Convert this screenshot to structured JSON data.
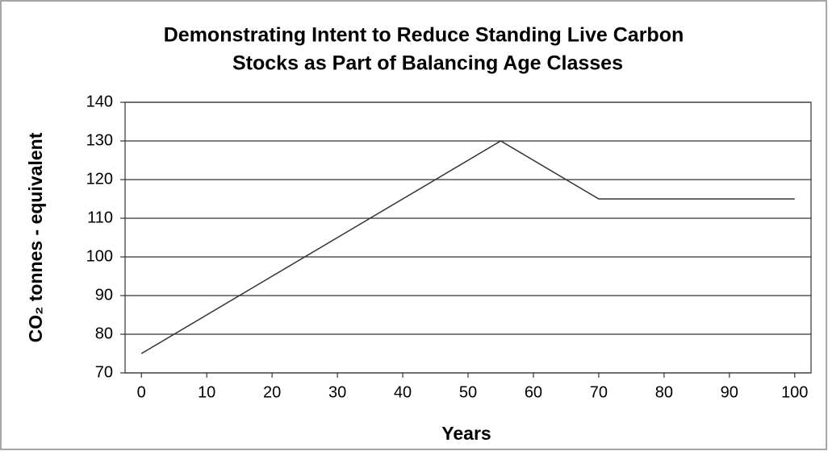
{
  "chart_data": {
    "type": "line",
    "title": [
      "Demonstrating Intent to Reduce Standing Live Carbon",
      "Stocks as Part of Balancing Age Classes"
    ],
    "x_label": "Years",
    "y_label": "CO₂ tonnes - equivalent",
    "x": [
      0,
      10,
      20,
      30,
      40,
      55,
      70,
      100
    ],
    "series": [
      {
        "color": "#333333",
        "values": [
          75,
          85,
          95,
          105,
          115,
          130,
          115,
          115
        ]
      }
    ],
    "xlim": [
      -2.5,
      102.5
    ],
    "xticks": [
      0,
      10,
      20,
      30,
      40,
      50,
      60,
      70,
      80,
      90,
      100
    ],
    "ylim": [
      70,
      140
    ],
    "yticks": [
      70,
      80,
      90,
      100,
      110,
      120,
      130,
      140
    ],
    "grid": true
  }
}
